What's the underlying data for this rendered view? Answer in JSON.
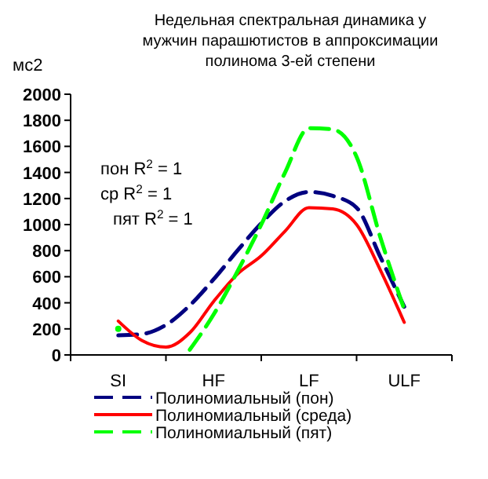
{
  "chart_data": {
    "type": "line",
    "title": "Недельная спектральная динамика  у мужчин парашютистов в аппроксимации полинома 3-ей степени",
    "ylabel": "мс2",
    "categories": [
      "SI",
      null,
      null,
      null,
      "HF",
      null,
      null,
      null,
      "LF",
      null,
      null,
      null,
      "ULF"
    ],
    "ylim": [
      0,
      2000
    ],
    "yticks": [
      0,
      200,
      400,
      600,
      800,
      1000,
      1200,
      1400,
      1600,
      1800,
      2000
    ],
    "legend": "bottom",
    "marker": "none",
    "annotations": [
      "пон R$^{2}$ = 1",
      "ср R$^{2}$ = 1",
      "пят R$^{2}$ = 1"
    ],
    "series": [
      {
        "name": "Полиномиальный (пон)",
        "color": "#000080",
        "line_style": "dashed",
        "values": [
          150,
          160,
          230,
          380,
          580,
          800,
          1010,
          1180,
          1250,
          1220,
          1130,
          750,
          370
        ]
      },
      {
        "name": "Полиномиальный (среда)",
        "color": "#ff0000",
        "line_style": "solid",
        "values": [
          260,
          110,
          60,
          170,
          410,
          620,
          760,
          950,
          1130,
          1120,
          1000,
          650,
          250
        ]
      },
      {
        "name": "Полиномиальный (пят)",
        "color": "#00ff00",
        "line_style": "dashed",
        "values": [
          200,
          null,
          null,
          40,
          310,
          640,
          1000,
          1400,
          1740,
          1730,
          1520,
          900,
          350
        ]
      }
    ]
  }
}
